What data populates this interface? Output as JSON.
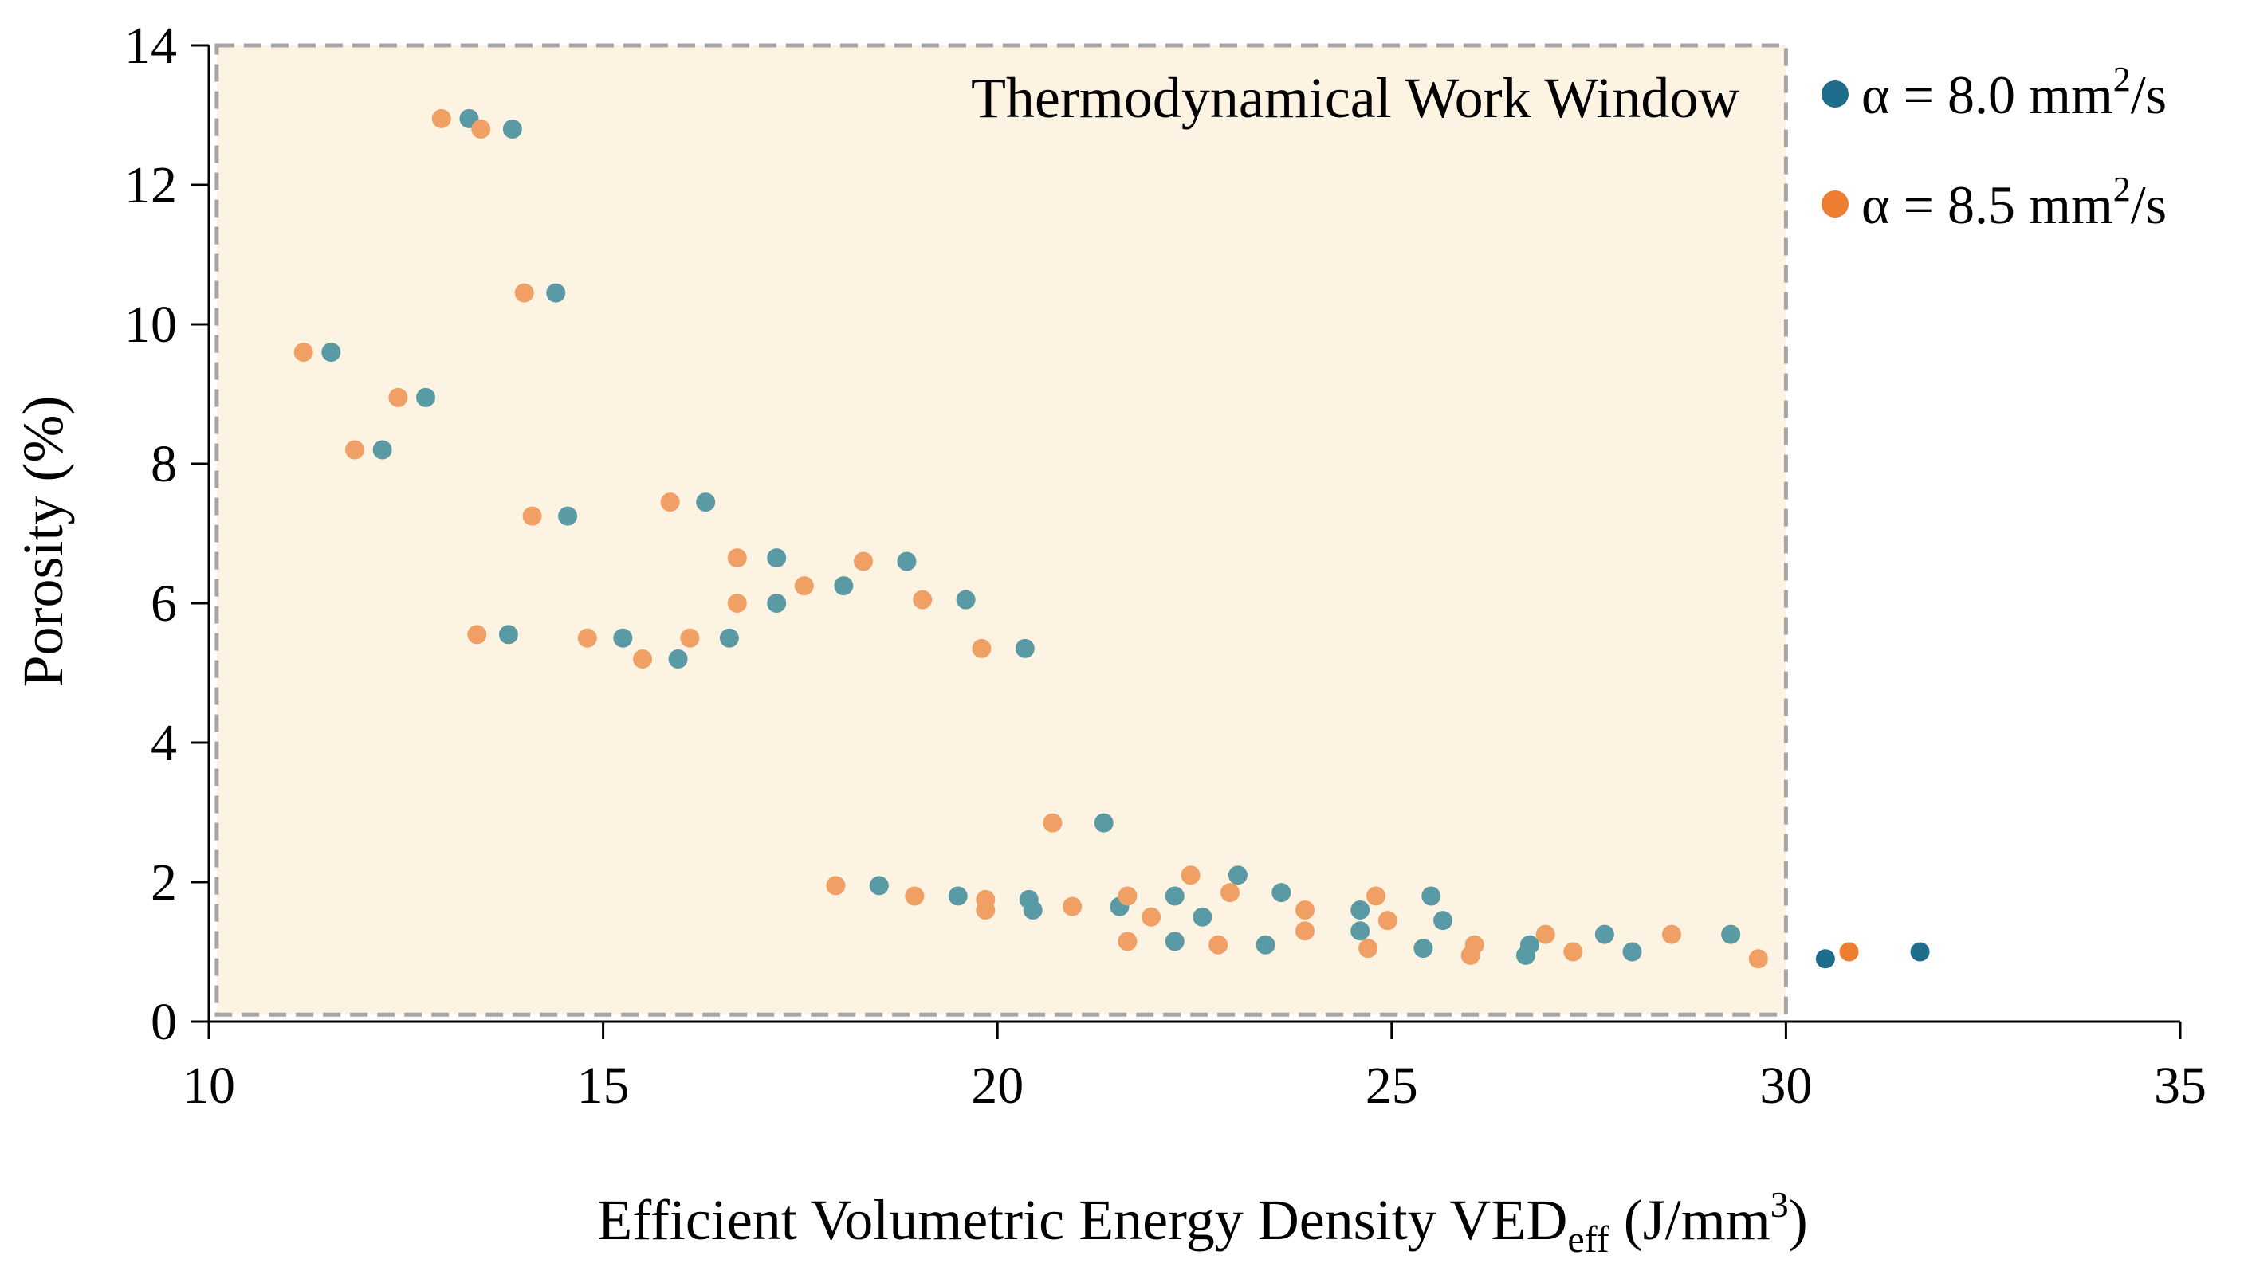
{
  "chart_data": {
    "type": "scatter",
    "title": "",
    "xlabel": "Efficient Volumetric Energy Density VED",
    "xlabel_subscript": "eff",
    "xlabel_unit_prefix": "(J/mm",
    "xlabel_unit_sup": "3",
    "xlabel_unit_suffix": ")",
    "ylabel": "Porosity (%)",
    "xlim": [
      10,
      35
    ],
    "ylim": [
      0,
      14
    ],
    "x_ticks": [
      10,
      15,
      20,
      25,
      30,
      35
    ],
    "y_ticks": [
      0,
      2,
      4,
      6,
      8,
      10,
      12,
      14
    ],
    "grid": false,
    "legend_position": "top-right (outside plot)",
    "window": {
      "label": "Thermodynamical Work Window",
      "x_range": [
        10.1,
        30
      ],
      "y_range": [
        0.1,
        14
      ],
      "fill": "#fdf3e3",
      "border": "#a6a6a6"
    },
    "series": [
      {
        "name": "α = 8.0 mm²/s",
        "legend_prefix": "α = 8.0 mm",
        "legend_sup": "2",
        "legend_suffix": "/s",
        "color": "#1f6d8c",
        "color_in_window": "#5a9aa5",
        "points": [
          [
            13.3,
            12.95
          ],
          [
            13.85,
            12.8
          ],
          [
            14.4,
            10.45
          ],
          [
            11.55,
            9.6
          ],
          [
            12.75,
            8.95
          ],
          [
            12.2,
            8.2
          ],
          [
            14.55,
            7.25
          ],
          [
            16.3,
            7.45
          ],
          [
            17.2,
            6.65
          ],
          [
            18.85,
            6.6
          ],
          [
            18.05,
            6.25
          ],
          [
            17.2,
            6.0
          ],
          [
            19.6,
            6.05
          ],
          [
            13.8,
            5.55
          ],
          [
            15.25,
            5.5
          ],
          [
            16.6,
            5.5
          ],
          [
            15.95,
            5.2
          ],
          [
            20.35,
            5.35
          ],
          [
            21.35,
            2.85
          ],
          [
            18.5,
            1.95
          ],
          [
            19.5,
            1.8
          ],
          [
            20.4,
            1.75
          ],
          [
            20.45,
            1.6
          ],
          [
            21.55,
            1.65
          ],
          [
            22.25,
            1.8
          ],
          [
            22.6,
            1.5
          ],
          [
            23.05,
            2.1
          ],
          [
            23.6,
            1.85
          ],
          [
            22.25,
            1.15
          ],
          [
            23.4,
            1.1
          ],
          [
            24.6,
            1.6
          ],
          [
            24.6,
            1.3
          ],
          [
            25.5,
            1.8
          ],
          [
            25.65,
            1.45
          ],
          [
            25.4,
            1.05
          ],
          [
            26.75,
            1.1
          ],
          [
            26.7,
            0.95
          ],
          [
            27.7,
            1.25
          ],
          [
            28.05,
            1.0
          ],
          [
            29.3,
            1.25
          ],
          [
            30.5,
            0.9
          ],
          [
            31.7,
            1.0
          ]
        ]
      },
      {
        "name": "α = 8.5 mm²/s",
        "legend_prefix": "α = 8.5 mm",
        "legend_sup": "2",
        "legend_suffix": "/s",
        "color": "#ed7d31",
        "color_in_window": "#f0a065",
        "points": [
          [
            12.95,
            12.95
          ],
          [
            13.45,
            12.8
          ],
          [
            14.0,
            10.45
          ],
          [
            11.2,
            9.6
          ],
          [
            12.4,
            8.95
          ],
          [
            11.85,
            8.2
          ],
          [
            14.1,
            7.25
          ],
          [
            15.85,
            7.45
          ],
          [
            16.7,
            6.65
          ],
          [
            18.3,
            6.6
          ],
          [
            17.55,
            6.25
          ],
          [
            16.7,
            6.0
          ],
          [
            19.05,
            6.05
          ],
          [
            13.4,
            5.55
          ],
          [
            14.8,
            5.5
          ],
          [
            16.1,
            5.5
          ],
          [
            15.5,
            5.2
          ],
          [
            19.8,
            5.35
          ],
          [
            20.7,
            2.85
          ],
          [
            17.95,
            1.95
          ],
          [
            18.95,
            1.8
          ],
          [
            19.85,
            1.75
          ],
          [
            19.85,
            1.6
          ],
          [
            20.95,
            1.65
          ],
          [
            21.65,
            1.8
          ],
          [
            21.95,
            1.5
          ],
          [
            22.45,
            2.1
          ],
          [
            22.95,
            1.85
          ],
          [
            21.65,
            1.15
          ],
          [
            22.8,
            1.1
          ],
          [
            23.9,
            1.6
          ],
          [
            23.9,
            1.3
          ],
          [
            24.8,
            1.8
          ],
          [
            24.95,
            1.45
          ],
          [
            24.7,
            1.05
          ],
          [
            26.05,
            1.1
          ],
          [
            26.0,
            0.95
          ],
          [
            26.95,
            1.25
          ],
          [
            27.3,
            1.0
          ],
          [
            28.55,
            1.25
          ],
          [
            29.65,
            0.9
          ],
          [
            30.8,
            1.0
          ]
        ]
      }
    ]
  }
}
